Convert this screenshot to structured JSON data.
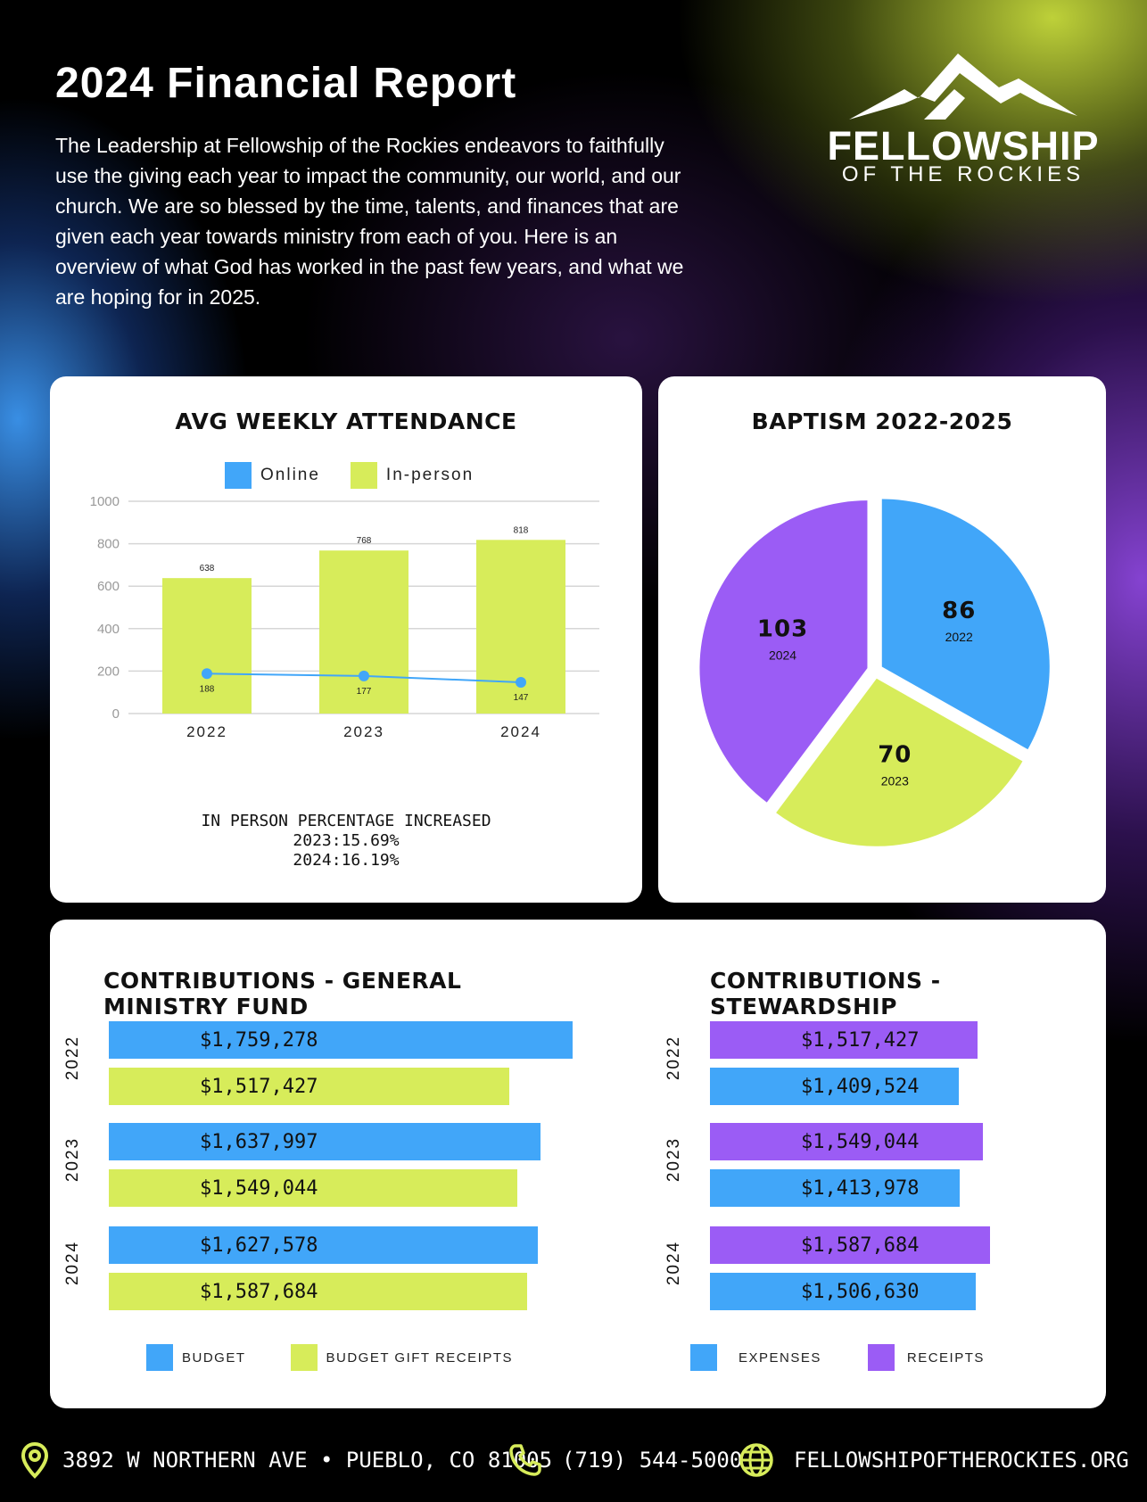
{
  "header": {
    "title": "2024 Financial Report",
    "intro": "The Leadership at Fellowship of the Rockies endeavors to faithfully use the giving each year to impact the community, our world, and our church. We are so blessed by the time, talents, and finances that are given each year towards ministry from each of you. Here is an overview of what God has worked in the past few years, and what we are hoping for in 2025."
  },
  "logo": {
    "main": "FELLOWSHIP",
    "sub": "OF THE ROCKIES",
    "icon": "mountain-icon"
  },
  "colors": {
    "blue": "#41A6F9",
    "lime": "#D7EC5A",
    "purple": "#9B5CF5"
  },
  "chart_data": [
    {
      "type": "bar",
      "title": "AVG WEEKLY ATTENDANCE",
      "categories": [
        "2022",
        "2023",
        "2024"
      ],
      "series": [
        {
          "name": "In-person",
          "kind": "bar",
          "color": "#D7EC5A",
          "values": [
            638,
            768,
            818
          ]
        },
        {
          "name": "Online",
          "kind": "line",
          "color": "#41A6F9",
          "values": [
            188,
            177,
            147
          ]
        }
      ],
      "ylim": [
        0,
        1000
      ],
      "yticks": [
        "0",
        "200",
        "400",
        "600",
        "800",
        "1000"
      ],
      "grid": true,
      "legend": "top",
      "note": [
        "IN PERSON PERCENTAGE INCREASED",
        "2023:15.69%",
        "2024:16.19%"
      ]
    },
    {
      "type": "pie",
      "title": "BAPTISM 2022-2025",
      "slices": [
        {
          "label": "2022",
          "value": 86,
          "color": "#41A6F9"
        },
        {
          "label": "2023",
          "value": 70,
          "color": "#D7EC5A"
        },
        {
          "label": "2024",
          "value": 103,
          "color": "#9B5CF5"
        }
      ]
    },
    {
      "type": "bar",
      "orientation": "horizontal",
      "title": "CONTRIBUTIONS - GENERAL MINISTRY FUND",
      "categories": [
        "2022",
        "2023",
        "2024"
      ],
      "series": [
        {
          "name": "BUDGET",
          "color": "#41A6F9",
          "values": [
            1759278,
            1637997,
            1627578
          ],
          "labels": [
            "$1,759,278",
            "$1,637,997",
            "$1,627,578"
          ]
        },
        {
          "name": "BUDGET GIFT RECEIPTS",
          "color": "#D7EC5A",
          "values": [
            1517427,
            1549044,
            1587684
          ],
          "labels": [
            "$1,517,427",
            "$1,549,044",
            "$1,587,684"
          ]
        }
      ]
    },
    {
      "type": "bar",
      "orientation": "horizontal",
      "title": "CONTRIBUTIONS - STEWARDSHIP",
      "categories": [
        "2022",
        "2023",
        "2024"
      ],
      "series": [
        {
          "name": "RECEIPTS",
          "color": "#9B5CF5",
          "values": [
            1517427,
            1549044,
            1587684
          ],
          "labels": [
            "$1,517,427",
            "$1,549,044",
            "$1,587,684"
          ]
        },
        {
          "name": "EXPENSES",
          "color": "#41A6F9",
          "values": [
            1409524,
            1413978,
            1506630
          ],
          "labels": [
            "$1,409,524",
            "$1,413,978",
            "$1,506,630"
          ]
        }
      ]
    }
  ],
  "footer": {
    "address": "3892 W NORTHERN AVE • PUEBLO, CO 81005",
    "phone": "(719) 544-5000",
    "website": "FELLOWSHIPOFTHEROCKIES.ORG",
    "icons": [
      "location-pin-icon",
      "phone-icon",
      "globe-icon"
    ]
  }
}
